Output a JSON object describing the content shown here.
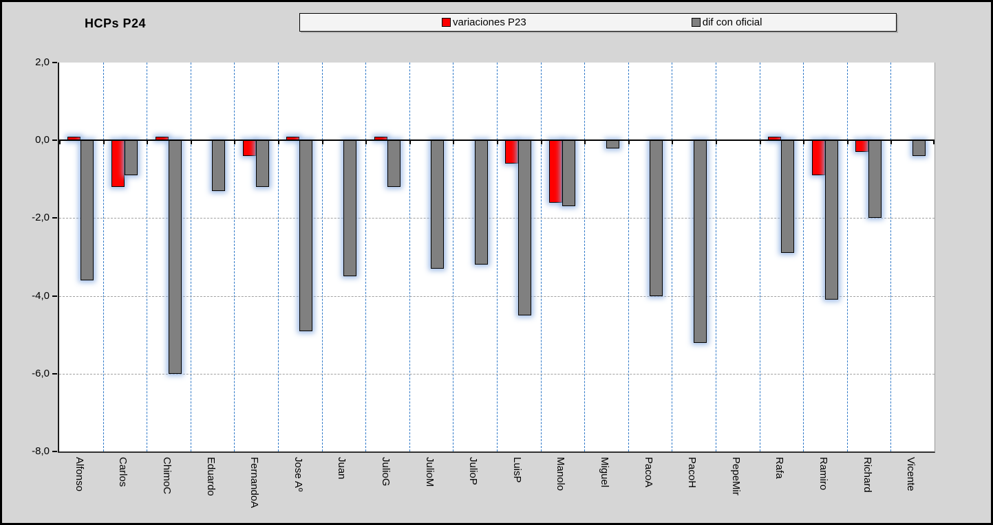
{
  "title": "HCPs P24",
  "legend": {
    "items": [
      {
        "label": "variaciones P23",
        "color": "#ff0000"
      },
      {
        "label": "dif con oficial",
        "color": "#808080"
      }
    ]
  },
  "chart_data": {
    "type": "bar",
    "title": "HCPs P24",
    "categories": [
      "Alfonso",
      "Carlos",
      "ChimoC",
      "Eduardo",
      "FernandoA",
      "Jose Aº",
      "Juan",
      "JulioG",
      "JulioM",
      "JulioP",
      "LuisP",
      "Manolo",
      "Miguel",
      "PacoA",
      "PacoH",
      "PepeMir",
      "Rafa",
      "Ramiro",
      "Richard",
      "Vicente"
    ],
    "series": [
      {
        "name": "variaciones P23",
        "color": "#ff0000",
        "values": [
          0.1,
          -1.2,
          0.1,
          0,
          -0.4,
          0.1,
          0,
          0.1,
          0,
          0,
          -0.6,
          -1.6,
          0,
          0,
          0,
          0,
          0.1,
          -0.9,
          -0.3,
          0
        ]
      },
      {
        "name": "dif con oficial",
        "color": "#808080",
        "values": [
          -3.6,
          -0.9,
          -6.0,
          -1.3,
          -1.2,
          -4.9,
          -3.5,
          -1.2,
          -3.3,
          -3.2,
          -4.5,
          -1.7,
          -0.2,
          -4.0,
          -5.2,
          0,
          -2.9,
          -4.1,
          -2.0,
          -0.4
        ]
      }
    ],
    "ylim": [
      -8,
      2
    ],
    "ytick_step": 2,
    "yticks": [
      {
        "value": 2,
        "label": "2,0"
      },
      {
        "value": 0,
        "label": "0,0"
      },
      {
        "value": -2,
        "label": "-2,0"
      },
      {
        "value": -4,
        "label": "-4,0"
      },
      {
        "value": -6,
        "label": "-6,0"
      },
      {
        "value": -8,
        "label": "-8,0"
      }
    ],
    "grid": {
      "vertical": "dashed blue at category boundaries",
      "horizontal": "dashed gray at -2,-4,-6"
    },
    "legend_position": "top",
    "xlabel": "",
    "ylabel": ""
  },
  "colors": {
    "background": "#d6d6d6",
    "plot_background": "#ffffff",
    "series_red": "#ff0000",
    "series_gray": "#808080",
    "vertical_grid": "#2e78c8",
    "horizontal_grid": "#9f9f9f",
    "axis": "#000000",
    "legend_background": "#f4f4f4",
    "bar_glow": "rgba(145,178,226,0.85)"
  }
}
